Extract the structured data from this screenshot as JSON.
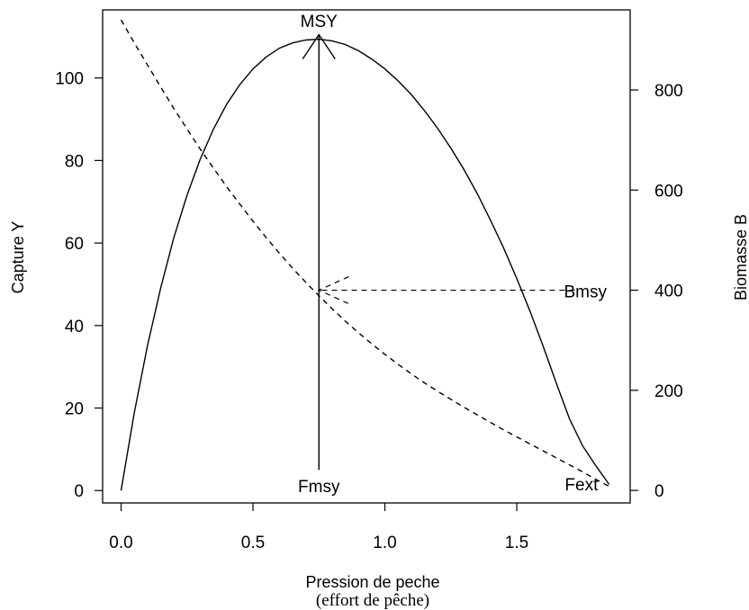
{
  "chart_data": {
    "type": "line",
    "title": "",
    "xlabel": "Pression de peche",
    "xlabel_line2": "(effort de pêche)",
    "ylabel_left": "Capture Y",
    "ylabel_right": "Biomasse B",
    "xlim": [
      -0.07,
      1.93
    ],
    "ylim_left": [
      -3,
      116.5
    ],
    "ylim_right": [
      -25,
      960
    ],
    "x_ticks": [
      0.0,
      0.5,
      1.0,
      1.5
    ],
    "x_tick_labels": [
      "0.0",
      "0.5",
      "1.0",
      "1.5"
    ],
    "y_left_ticks": [
      0,
      20,
      40,
      60,
      80,
      100
    ],
    "y_left_tick_labels": [
      "0",
      "20",
      "40",
      "60",
      "80",
      "100"
    ],
    "y_right_ticks": [
      0,
      200,
      400,
      600,
      800
    ],
    "y_right_tick_labels": [
      "0",
      "200",
      "400",
      "600",
      "800"
    ],
    "grid": false,
    "legend": "none",
    "series": [
      {
        "line_style": "solid",
        "axis": "left",
        "x": [
          0.0,
          0.05,
          0.1,
          0.15,
          0.2,
          0.25,
          0.3,
          0.35,
          0.4,
          0.45,
          0.5,
          0.55,
          0.6,
          0.65,
          0.7,
          0.75,
          0.8,
          0.85,
          0.9,
          0.95,
          1.0,
          1.05,
          1.1,
          1.15,
          1.2,
          1.25,
          1.3,
          1.35,
          1.4,
          1.45,
          1.5,
          1.55,
          1.6,
          1.65,
          1.7,
          1.75,
          1.8,
          1.85
        ],
        "values": [
          0,
          18.9,
          35.1,
          49.1,
          61.3,
          71.6,
          80.3,
          87.6,
          93.6,
          98.4,
          102.2,
          105.1,
          107.2,
          108.5,
          109.2,
          109.4,
          109.0,
          108.1,
          106.6,
          104.6,
          102.2,
          99.3,
          96.0,
          92.1,
          87.8,
          83.0,
          77.8,
          72.0,
          65.6,
          58.8,
          51.4,
          43.5,
          35.0,
          26.0,
          17.4,
          10.8,
          6.0,
          1.5
        ]
      },
      {
        "line_style": "dashed",
        "axis": "right",
        "x": [
          0.0,
          0.05,
          0.1,
          0.15,
          0.2,
          0.25,
          0.3,
          0.35,
          0.4,
          0.45,
          0.5,
          0.55,
          0.6,
          0.65,
          0.7,
          0.75,
          0.8,
          0.85,
          0.9,
          0.95,
          1.0,
          1.05,
          1.1,
          1.15,
          1.2,
          1.25,
          1.3,
          1.35,
          1.4,
          1.45,
          1.5,
          1.55,
          1.6,
          1.65,
          1.7,
          1.75,
          1.8,
          1.85
        ],
        "values": [
          940,
          894,
          850,
          806,
          763,
          722,
          682,
          644,
          607,
          572,
          538,
          505,
          474,
          444,
          416,
          389,
          363,
          338,
          315,
          293,
          272,
          252,
          233,
          215,
          198,
          182,
          166,
          151,
          136,
          121,
          107,
          93,
          79,
          65,
          51,
          37,
          22,
          8
        ]
      }
    ],
    "annotations": [
      {
        "text": "MSY",
        "x": 0.75,
        "y_left": 110.2
      },
      {
        "text": "Fmsy",
        "x": 0.75,
        "y_left": 0
      },
      {
        "text": "Bmsy",
        "x": 1.76,
        "y_right": 400
      },
      {
        "text": "Fext",
        "x": 1.8,
        "y_right": 0
      }
    ],
    "arrows": [
      {
        "from_x": 0.75,
        "from_y_left": 5,
        "to_x": 0.75,
        "to_y_left": 110.5
      },
      {
        "from_x": 1.72,
        "from_y_right": 400,
        "to_x": 0.75,
        "to_y_right": 400
      }
    ]
  }
}
